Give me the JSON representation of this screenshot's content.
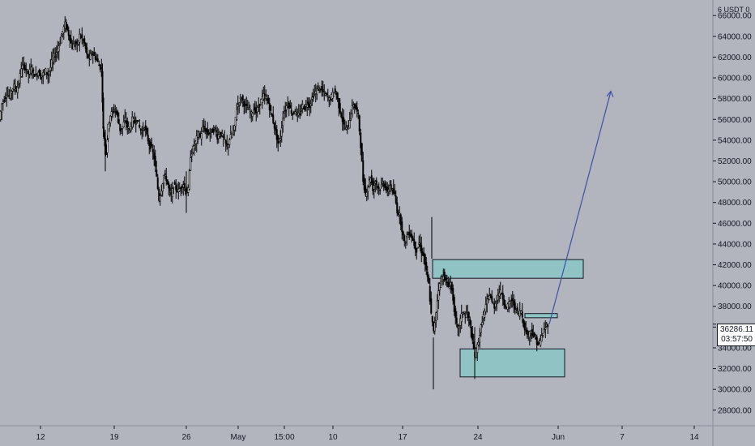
{
  "chart_data": {
    "type": "candlestick",
    "currency_label": "USDT",
    "top_tick": "6",
    "currency_suffix": "0",
    "y_ticks": [
      "66000.00",
      "64000.00",
      "62000.00",
      "60000.00",
      "58000.00",
      "56000.00",
      "54000.00",
      "52000.00",
      "50000.00",
      "48000.00",
      "46000.00",
      "44000.00",
      "42000.00",
      "40000.00",
      "38000.00",
      "36000.00",
      "34000.00",
      "32000.00",
      "30000.00",
      "28000.00"
    ],
    "y_tick_values": [
      66000,
      64000,
      62000,
      60000,
      58000,
      56000,
      54000,
      52000,
      50000,
      48000,
      46000,
      44000,
      42000,
      40000,
      38000,
      36000,
      34000,
      32000,
      30000,
      28000
    ],
    "x_ticks": [
      "12",
      "19",
      "26",
      "May",
      "15:00",
      "10",
      "17",
      "24",
      "Jun",
      "7",
      "14"
    ],
    "last_price": "36286.11",
    "countdown": "03:57:50",
    "ylim": [
      26500,
      67500
    ],
    "close_path": [
      [
        0,
        56000
      ],
      [
        3,
        57500
      ],
      [
        6,
        58000
      ],
      [
        9,
        58500
      ],
      [
        12,
        58200
      ],
      [
        15,
        58800
      ],
      [
        18,
        59200
      ],
      [
        21,
        58800
      ],
      [
        24,
        59500
      ],
      [
        27,
        61000
      ],
      [
        30,
        61200
      ],
      [
        33,
        60800
      ],
      [
        36,
        60400
      ],
      [
        39,
        60900
      ],
      [
        42,
        60500
      ],
      [
        45,
        60200
      ],
      [
        48,
        60600
      ],
      [
        51,
        60100
      ],
      [
        54,
        60400
      ],
      [
        57,
        60700
      ],
      [
        60,
        60300
      ],
      [
        63,
        61000
      ],
      [
        66,
        62000
      ],
      [
        69,
        62200
      ],
      [
        72,
        62800
      ],
      [
        75,
        63500
      ],
      [
        78,
        64500
      ],
      [
        81,
        65200
      ],
      [
        84,
        64600
      ],
      [
        87,
        63800
      ],
      [
        90,
        62900
      ],
      [
        93,
        63400
      ],
      [
        96,
        63100
      ],
      [
        99,
        64100
      ],
      [
        102,
        63800
      ],
      [
        105,
        63300
      ],
      [
        108,
        62200
      ],
      [
        111,
        61800
      ],
      [
        114,
        62500
      ],
      [
        117,
        62100
      ],
      [
        120,
        61800
      ],
      [
        123,
        61200
      ],
      [
        126,
        60800
      ],
      [
        128,
        55000
      ],
      [
        130,
        53500
      ],
      [
        132,
        53000
      ],
      [
        134,
        55300
      ],
      [
        137,
        56400
      ],
      [
        140,
        56800
      ],
      [
        143,
        57000
      ],
      [
        146,
        56200
      ],
      [
        149,
        55000
      ],
      [
        152,
        55300
      ],
      [
        155,
        56000
      ],
      [
        158,
        55300
      ],
      [
        161,
        55000
      ],
      [
        164,
        56000
      ],
      [
        167,
        55700
      ],
      [
        170,
        56000
      ],
      [
        173,
        55200
      ],
      [
        176,
        54700
      ],
      [
        179,
        55400
      ],
      [
        182,
        54400
      ],
      [
        185,
        53600
      ],
      [
        188,
        53200
      ],
      [
        191,
        52300
      ],
      [
        194,
        50400
      ],
      [
        197,
        48300
      ],
      [
        200,
        49300
      ],
      [
        203,
        50600
      ],
      [
        206,
        50300
      ],
      [
        209,
        49300
      ],
      [
        212,
        48600
      ],
      [
        215,
        49700
      ],
      [
        218,
        49300
      ],
      [
        221,
        49100
      ],
      [
        224,
        49500
      ],
      [
        227,
        49800
      ],
      [
        230,
        49000
      ],
      [
        233,
        49200
      ],
      [
        236,
        52500
      ],
      [
        239,
        53200
      ],
      [
        242,
        53800
      ],
      [
        245,
        54600
      ],
      [
        248,
        54300
      ],
      [
        251,
        55200
      ],
      [
        254,
        55000
      ],
      [
        257,
        54600
      ],
      [
        260,
        54800
      ],
      [
        263,
        54900
      ],
      [
        266,
        55100
      ],
      [
        269,
        54300
      ],
      [
        272,
        54700
      ],
      [
        275,
        54400
      ],
      [
        278,
        53900
      ],
      [
        281,
        53300
      ],
      [
        284,
        54100
      ],
      [
        287,
        54600
      ],
      [
        290,
        55200
      ],
      [
        293,
        57100
      ],
      [
        296,
        57800
      ],
      [
        299,
        58100
      ],
      [
        302,
        57500
      ],
      [
        305,
        57100
      ],
      [
        308,
        56900
      ],
      [
        311,
        56500
      ],
      [
        314,
        57000
      ],
      [
        317,
        56700
      ],
      [
        320,
        57300
      ],
      [
        323,
        57800
      ],
      [
        326,
        58300
      ],
      [
        329,
        58100
      ],
      [
        332,
        57600
      ],
      [
        335,
        56700
      ],
      [
        338,
        55800
      ],
      [
        341,
        54800
      ],
      [
        344,
        53700
      ],
      [
        347,
        54300
      ],
      [
        350,
        56300
      ],
      [
        353,
        57000
      ],
      [
        356,
        57600
      ],
      [
        359,
        57000
      ],
      [
        362,
        56500
      ],
      [
        365,
        56900
      ],
      [
        368,
        56300
      ],
      [
        371,
        56600
      ],
      [
        374,
        57300
      ],
      [
        377,
        57100
      ],
      [
        380,
        57600
      ],
      [
        383,
        57300
      ],
      [
        386,
        58100
      ],
      [
        389,
        58500
      ],
      [
        392,
        58800
      ],
      [
        395,
        59100
      ],
      [
        398,
        58800
      ],
      [
        401,
        58500
      ],
      [
        404,
        58300
      ],
      [
        407,
        57900
      ],
      [
        410,
        58200
      ],
      [
        413,
        58700
      ],
      [
        416,
        58500
      ],
      [
        419,
        57300
      ],
      [
        422,
        56400
      ],
      [
        425,
        55400
      ],
      [
        428,
        55100
      ],
      [
        431,
        55400
      ],
      [
        434,
        56700
      ],
      [
        437,
        57500
      ],
      [
        440,
        57000
      ],
      [
        443,
        56400
      ],
      [
        446,
        53500
      ],
      [
        449,
        50100
      ],
      [
        452,
        48800
      ],
      [
        455,
        49600
      ],
      [
        458,
        50500
      ],
      [
        461,
        49300
      ],
      [
        464,
        50100
      ],
      [
        467,
        49500
      ],
      [
        470,
        49300
      ],
      [
        473,
        49900
      ],
      [
        476,
        49600
      ],
      [
        479,
        48900
      ],
      [
        482,
        49700
      ],
      [
        485,
        49100
      ],
      [
        488,
        48700
      ],
      [
        491,
        47200
      ],
      [
        494,
        46800
      ],
      [
        497,
        45400
      ],
      [
        500,
        44100
      ],
      [
        503,
        44700
      ],
      [
        506,
        45100
      ],
      [
        509,
        44700
      ],
      [
        512,
        44000
      ],
      [
        515,
        43400
      ],
      [
        518,
        44100
      ],
      [
        521,
        43300
      ],
      [
        524,
        42800
      ],
      [
        527,
        41300
      ],
      [
        530,
        40100
      ],
      [
        533,
        37200
      ],
      [
        536,
        35500
      ],
      [
        539,
        37500
      ],
      [
        542,
        39700
      ],
      [
        545,
        40400
      ],
      [
        548,
        41100
      ],
      [
        551,
        40400
      ],
      [
        554,
        39900
      ],
      [
        557,
        40300
      ],
      [
        560,
        38700
      ],
      [
        563,
        36700
      ],
      [
        566,
        35700
      ],
      [
        569,
        36700
      ],
      [
        572,
        37500
      ],
      [
        575,
        37100
      ],
      [
        578,
        37400
      ],
      [
        581,
        36100
      ],
      [
        584,
        34500
      ],
      [
        587,
        33200
      ],
      [
        590,
        34200
      ],
      [
        593,
        35300
      ],
      [
        596,
        36700
      ],
      [
        599,
        37500
      ],
      [
        602,
        38500
      ],
      [
        605,
        39200
      ],
      [
        608,
        38400
      ],
      [
        611,
        38000
      ],
      [
        614,
        38700
      ],
      [
        617,
        39400
      ],
      [
        620,
        39300
      ],
      [
        623,
        38400
      ],
      [
        626,
        37700
      ],
      [
        629,
        38300
      ],
      [
        632,
        38600
      ],
      [
        635,
        38200
      ],
      [
        638,
        37700
      ],
      [
        641,
        37300
      ],
      [
        644,
        37600
      ],
      [
        647,
        36300
      ],
      [
        650,
        35500
      ],
      [
        653,
        35200
      ],
      [
        656,
        35700
      ],
      [
        659,
        35200
      ],
      [
        662,
        34800
      ],
      [
        665,
        34300
      ],
      [
        668,
        34700
      ],
      [
        671,
        35500
      ],
      [
        674,
        36000
      ],
      [
        677,
        36286
      ]
    ],
    "zones": [
      {
        "from_x": 534,
        "to_x": 720,
        "low": 40700,
        "high": 42500,
        "color": "#8fc3c4"
      },
      {
        "from_x": 568,
        "to_x": 697,
        "low": 31200,
        "high": 33900,
        "color": "#8fc3c4"
      },
      {
        "from_x": 648,
        "to_x": 688,
        "low": 36900,
        "high": 37300,
        "color": "#8fc3c4"
      }
    ],
    "projection": {
      "from_x": 678,
      "from_y": 36286,
      "to_x": 754,
      "to_y": 58700,
      "color": "#3d51a8"
    }
  }
}
